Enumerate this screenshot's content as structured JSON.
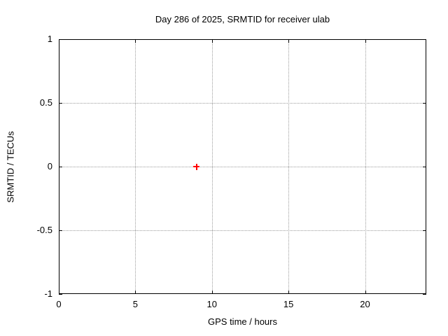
{
  "chart_data": {
    "type": "scatter",
    "title": "Day 286 of 2025, SRMTID for receiver ulab",
    "xlabel": "GPS time / hours",
    "ylabel": "SRMTID / TECUs",
    "xlim": [
      0,
      24
    ],
    "ylim": [
      -1,
      1
    ],
    "xticks": [
      0,
      5,
      10,
      15,
      20
    ],
    "yticks": [
      -1,
      -0.5,
      0,
      0.5,
      1
    ],
    "grid": true,
    "legend": "none",
    "series": [
      {
        "name": "SRMTID",
        "marker": "plus",
        "color": "#ff0000",
        "points": [
          {
            "x": 9,
            "y": 0
          }
        ]
      }
    ]
  },
  "colors": {
    "background": "#ffffff",
    "frame": "#000000",
    "grid": "#9c9c9c",
    "text": "#000000",
    "point": "#ff0000"
  }
}
